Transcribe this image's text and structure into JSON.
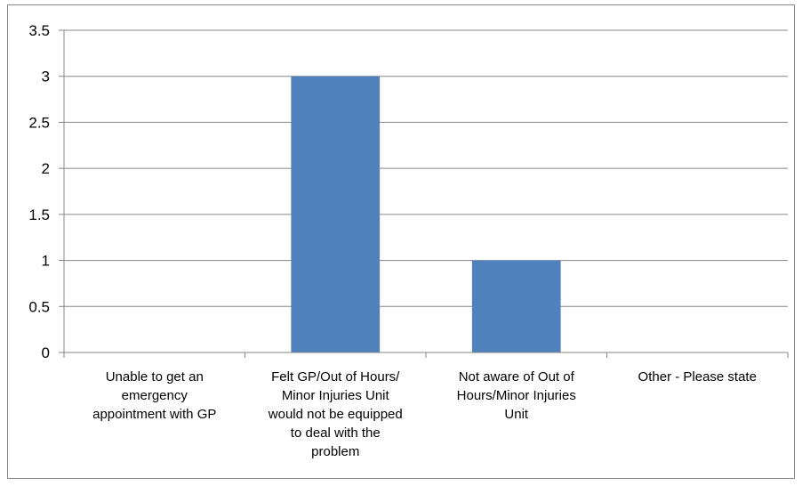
{
  "chart_data": {
    "type": "bar",
    "categories": [
      "Unable to get an emergency appointment with GP",
      "Felt GP/Out of Hours/ Minor Injuries Unit would not be equipped to deal with the problem",
      "Not aware of Out of Hours/Minor Injuries Unit",
      "Other - Please state"
    ],
    "category_lines": [
      [
        "Unable to get an",
        "emergency",
        "appointment with GP"
      ],
      [
        "Felt GP/Out of Hours/",
        "Minor Injuries Unit",
        "would not be equipped",
        "to deal with the",
        "problem"
      ],
      [
        "Not aware of Out of",
        "Hours/Minor Injuries",
        "Unit"
      ],
      [
        "Other - Please state"
      ]
    ],
    "values": [
      0,
      3,
      1,
      0
    ],
    "ylim": [
      0,
      3.5
    ],
    "yticks": [
      0,
      0.5,
      1,
      1.5,
      2,
      2.5,
      3,
      3.5
    ],
    "ytick_labels": [
      "0",
      "0.5",
      "1",
      "1.5",
      "2",
      "2.5",
      "3",
      "3.5"
    ],
    "grid": true,
    "bar_color": "#4F81BD",
    "title": "",
    "xlabel": "",
    "ylabel": ""
  }
}
